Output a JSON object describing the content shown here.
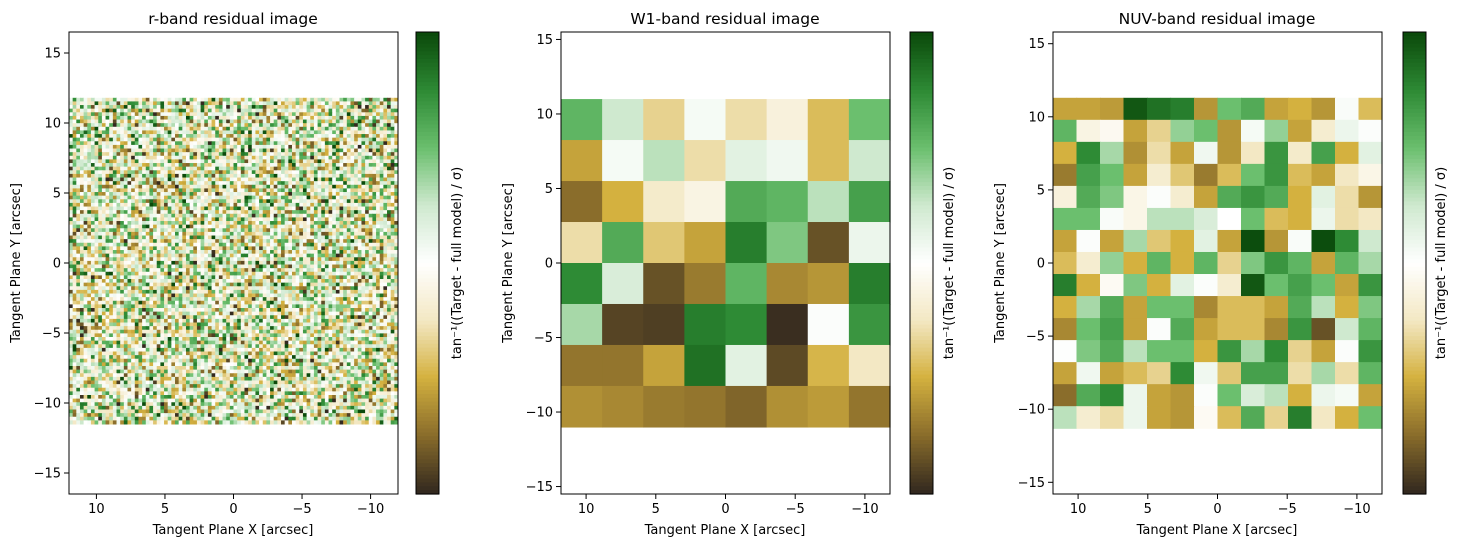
{
  "chart_data": [
    {
      "type": "heatmap",
      "title": "r-band residual image",
      "xlabel": "Tangent Plane X [arcsec]",
      "ylabel": "Tangent Plane Y [arcsec]",
      "xlim": [
        12,
        -12
      ],
      "ylim": [
        -16.5,
        16.5
      ],
      "image_extent": {
        "x": [
          12,
          -12
        ],
        "y": [
          -11.5,
          11.8
        ]
      },
      "grid_size": [
        90,
        90
      ],
      "pixel_values": "random fine-grained residual noise centred on 0 (brown-white-green)",
      "xticks": [
        10,
        5,
        0,
        -5,
        -10
      ],
      "yticks": [
        15,
        10,
        5,
        0,
        -5,
        -10,
        -15
      ],
      "colorbar_label": "tan⁻¹((Target - full model) / σ)",
      "colormap": [
        "#33291f",
        "#8a6d2b",
        "#d4b13f",
        "#f3e8c4",
        "#ffffff",
        "#cfe9cf",
        "#6bbf6e",
        "#2e8b35",
        "#0b4a0b"
      ]
    },
    {
      "type": "heatmap",
      "title": "W1-band residual image",
      "xlabel": "Tangent Plane X [arcsec]",
      "ylabel": "Tangent Plane Y [arcsec]",
      "xlim": [
        11.8,
        -11.8
      ],
      "ylim": [
        -15.5,
        15.5
      ],
      "image_extent": {
        "x": [
          11.8,
          -11.8
        ],
        "y": [
          -11,
          11
        ]
      },
      "xticks": [
        10,
        5,
        0,
        -5,
        -10
      ],
      "yticks": [
        15,
        10,
        5,
        0,
        -5,
        -10,
        -15
      ],
      "colorbar_label": "tan⁻¹((Target - full model) / σ)",
      "grid": [
        [
          0.55,
          0.25,
          -0.35,
          0.05,
          -0.3,
          -0.15,
          -0.45,
          0.5
        ],
        [
          -0.55,
          0.05,
          0.3,
          -0.3,
          0.15,
          0.08,
          -0.45,
          0.25
        ],
        [
          -0.75,
          -0.5,
          -0.22,
          -0.12,
          0.6,
          0.55,
          0.3,
          0.65
        ],
        [
          -0.3,
          0.6,
          -0.4,
          -0.55,
          0.8,
          0.45,
          -0.85,
          0.1
        ],
        [
          0.75,
          0.2,
          -0.85,
          -0.7,
          0.55,
          -0.65,
          -0.6,
          0.8
        ],
        [
          0.35,
          -0.9,
          -0.92,
          0.8,
          0.75,
          -0.98,
          0.02,
          0.7
        ],
        [
          -0.72,
          -0.72,
          -0.55,
          0.85,
          0.15,
          -0.88,
          -0.48,
          -0.25
        ],
        [
          -0.62,
          -0.65,
          -0.7,
          -0.72,
          -0.78,
          -0.62,
          -0.58,
          -0.72
        ]
      ]
    },
    {
      "type": "heatmap",
      "title": "NUV-band residual image",
      "xlabel": "Tangent Plane X [arcsec]",
      "ylabel": "Tangent Plane Y [arcsec]",
      "xlim": [
        11.8,
        -11.8
      ],
      "ylim": [
        -15.8,
        15.8
      ],
      "image_extent": {
        "x": [
          11.8,
          -11.8
        ],
        "y": [
          -11.3,
          11.3
        ]
      },
      "xticks": [
        10,
        5,
        0,
        -5,
        -10
      ],
      "yticks": [
        15,
        10,
        5,
        0,
        -5,
        -10,
        -15
      ],
      "colorbar_label": "tan⁻¹((Target - full model) / σ)",
      "grid": [
        [
          -0.55,
          -0.55,
          -0.58,
          0.95,
          0.85,
          0.8,
          -0.6,
          0.5,
          0.6,
          -0.55,
          -0.5,
          -0.6,
          0.03,
          -0.45
        ],
        [
          0.55,
          -0.12,
          -0.06,
          -0.55,
          -0.35,
          0.4,
          0.5,
          -0.6,
          0.05,
          0.4,
          -0.55,
          -0.2,
          0.1,
          0.02
        ],
        [
          -0.5,
          0.75,
          0.35,
          -0.62,
          -0.3,
          -0.55,
          0.08,
          -0.6,
          -0.25,
          0.7,
          -0.22,
          0.65,
          -0.5,
          0.15
        ],
        [
          -0.7,
          0.65,
          0.5,
          -0.55,
          -0.2,
          -0.4,
          -0.7,
          -0.45,
          0.5,
          0.7,
          -0.45,
          -0.55,
          -0.25,
          -0.1
        ],
        [
          -0.15,
          0.6,
          0.45,
          -0.1,
          0.02,
          -0.2,
          -0.55,
          0.6,
          0.7,
          0.6,
          -0.5,
          0.15,
          -0.3,
          -0.6
        ],
        [
          0.5,
          0.5,
          0.03,
          -0.1,
          0.3,
          0.3,
          0.2,
          0.0,
          0.5,
          -0.45,
          -0.5,
          0.1,
          -0.3,
          -0.25
        ],
        [
          -0.55,
          0.02,
          -0.55,
          0.35,
          -0.4,
          -0.5,
          0.15,
          -0.55,
          0.99,
          -0.6,
          0.03,
          0.99,
          0.75,
          0.25
        ],
        [
          -0.45,
          -0.2,
          0.4,
          -0.5,
          0.55,
          -0.5,
          0.55,
          -0.35,
          0.45,
          0.7,
          0.55,
          -0.55,
          0.55,
          0.35
        ],
        [
          0.8,
          -0.5,
          -0.05,
          0.45,
          -0.5,
          0.15,
          0.02,
          -0.2,
          0.95,
          0.5,
          0.65,
          0.5,
          -0.55,
          0.7
        ],
        [
          -0.5,
          0.35,
          0.6,
          -0.55,
          0.5,
          0.5,
          -0.65,
          -0.45,
          -0.45,
          -0.55,
          0.6,
          0.3,
          -0.5,
          0.45
        ],
        [
          -0.65,
          0.5,
          0.65,
          -0.55,
          0.02,
          0.6,
          -0.55,
          -0.45,
          -0.45,
          -0.65,
          0.7,
          -0.85,
          0.25,
          0.55
        ],
        [
          0.01,
          0.45,
          0.6,
          0.3,
          0.5,
          0.5,
          -0.5,
          0.7,
          0.35,
          0.75,
          -0.35,
          -0.55,
          0.02,
          0.7
        ],
        [
          -0.55,
          0.08,
          -0.55,
          -0.45,
          -0.35,
          0.75,
          0.08,
          -0.4,
          0.65,
          0.65,
          -0.3,
          0.35,
          -0.3,
          0.55
        ],
        [
          -0.75,
          0.6,
          0.75,
          0.1,
          -0.55,
          -0.6,
          0.02,
          0.5,
          0.2,
          0.3,
          -0.5,
          0.1,
          0.05,
          -0.55
        ],
        [
          0.3,
          -0.2,
          -0.3,
          0.1,
          -0.55,
          -0.6,
          -0.05,
          -0.45,
          0.6,
          -0.35,
          0.8,
          -0.25,
          -0.5,
          0.5
        ]
      ]
    }
  ]
}
